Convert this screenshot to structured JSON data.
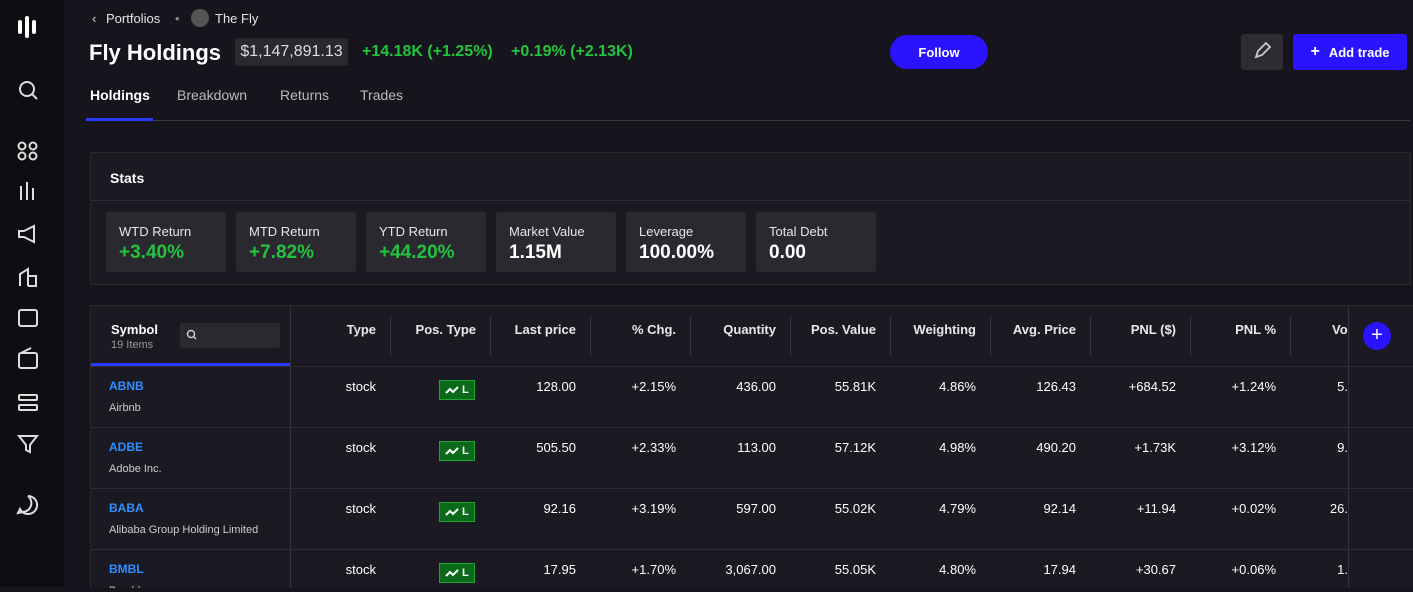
{
  "breadcrumb": {
    "parent": "Portfolios",
    "current": "The Fly"
  },
  "header": {
    "title": "Fly Holdings",
    "value": "$1,147,891.13",
    "day_change": "+14.18K (+1.25%)",
    "other_change": "+0.19% (+2.13K)"
  },
  "buttons": {
    "follow": "Follow",
    "add_trade": "Add trade"
  },
  "tabs": [
    "Holdings",
    "Breakdown",
    "Returns",
    "Trades"
  ],
  "stats": {
    "title": "Stats",
    "cards": [
      {
        "label": "WTD Return",
        "value": "+3.40%"
      },
      {
        "label": "MTD Return",
        "value": "+7.82%"
      },
      {
        "label": "YTD Return",
        "value": "+44.20%"
      },
      {
        "label": "Market Value",
        "value": "1.15M"
      },
      {
        "label": "Leverage",
        "value": "100.00%"
      },
      {
        "label": "Total Debt",
        "value": "0.00"
      }
    ]
  },
  "table": {
    "symbol_header": "Symbol",
    "item_count": "19 Items",
    "columns": [
      "Type",
      "Pos. Type",
      "Last price",
      "% Chg.",
      "Quantity",
      "Pos. Value",
      "Weighting",
      "Avg. Price",
      "PNL ($)",
      "PNL %",
      "Vo"
    ],
    "rows": [
      {
        "symbol": "ABNB",
        "name": "Airbnb",
        "cells": [
          "stock",
          "L",
          "128.00",
          "+2.15%",
          "436.00",
          "55.81K",
          "4.86%",
          "126.43",
          "+684.52",
          "+1.24%",
          "5."
        ]
      },
      {
        "symbol": "ADBE",
        "name": "Adobe Inc.",
        "cells": [
          "stock",
          "L",
          "505.50",
          "+2.33%",
          "113.00",
          "57.12K",
          "4.98%",
          "490.20",
          "+1.73K",
          "+3.12%",
          "9."
        ]
      },
      {
        "symbol": "BABA",
        "name": "Alibaba Group Holding Limited",
        "cells": [
          "stock",
          "L",
          "92.16",
          "+3.19%",
          "597.00",
          "55.02K",
          "4.79%",
          "92.14",
          "+11.94",
          "+0.02%",
          "26."
        ]
      },
      {
        "symbol": "BMBL",
        "name": "Bumble",
        "cells": [
          "stock",
          "L",
          "17.95",
          "+1.70%",
          "3,067.00",
          "55.05K",
          "4.80%",
          "17.94",
          "+30.67",
          "+0.06%",
          "1."
        ]
      }
    ]
  }
}
